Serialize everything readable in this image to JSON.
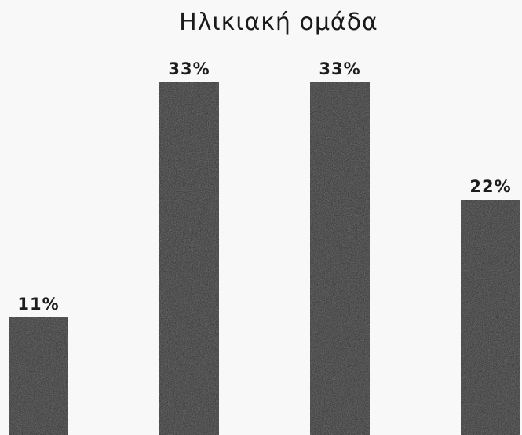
{
  "chart_data": {
    "type": "bar",
    "title": "Ηλικιακή ομάδα",
    "categories": [
      "",
      "",
      "",
      ""
    ],
    "values": [
      11,
      33,
      33,
      22
    ],
    "data_labels": [
      "11%",
      "33%",
      "33%",
      "22%"
    ],
    "ylim": [
      0,
      33
    ],
    "grid": false,
    "legend": "none",
    "bar_color": "#2b2b2b"
  }
}
